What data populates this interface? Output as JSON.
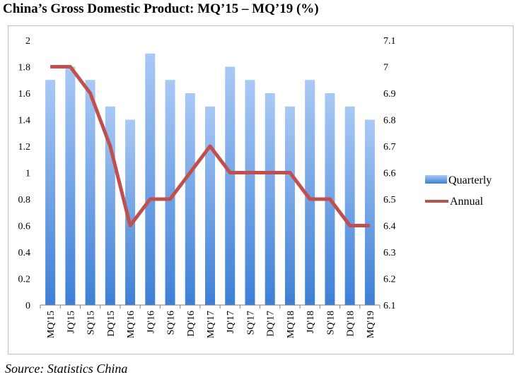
{
  "title": "China’s Gross Domestic Product: MQ’15 – MQ’19 (%)",
  "source": "Source: Statistics China",
  "chart_data": {
    "type": "bar",
    "categories": [
      "MQ'15",
      "JQ'15",
      "SQ'15",
      "DQ'15",
      "MQ'16",
      "JQ'16",
      "SQ'16",
      "DQ'16",
      "MQ'17",
      "JQ'17",
      "SQ'17",
      "DQ'17",
      "MQ'18",
      "JQ'18",
      "SQ'18",
      "DQ'18",
      "MQ'19"
    ],
    "series": [
      {
        "name": "Quarterly",
        "type": "bar",
        "axis": "left",
        "color": "#4f8fdc",
        "values": [
          1.7,
          1.8,
          1.7,
          1.5,
          1.4,
          1.9,
          1.7,
          1.6,
          1.5,
          1.8,
          1.7,
          1.6,
          1.5,
          1.7,
          1.6,
          1.5,
          1.4
        ]
      },
      {
        "name": "Annual",
        "type": "line",
        "axis": "right",
        "color": "#c0504d",
        "values": [
          7.0,
          7.0,
          6.9,
          6.7,
          6.4,
          6.5,
          6.5,
          6.6,
          6.7,
          6.6,
          6.6,
          6.6,
          6.6,
          6.5,
          6.5,
          6.4,
          6.4
        ]
      }
    ],
    "y_left": {
      "ylim": [
        0,
        2
      ],
      "ticks": [
        "0",
        "0.2",
        "0.4",
        "0.6",
        "0.8",
        "1",
        "1.2",
        "1.4",
        "1.6",
        "1.8",
        "2"
      ]
    },
    "y_right": {
      "ylim": [
        6.1,
        7.1
      ],
      "ticks": [
        "6.1",
        "6.2",
        "6.3",
        "6.4",
        "6.5",
        "6.6",
        "6.7",
        "6.8",
        "6.9",
        "7",
        "7.1"
      ]
    },
    "legend": {
      "placement": "right"
    },
    "grid": false
  }
}
